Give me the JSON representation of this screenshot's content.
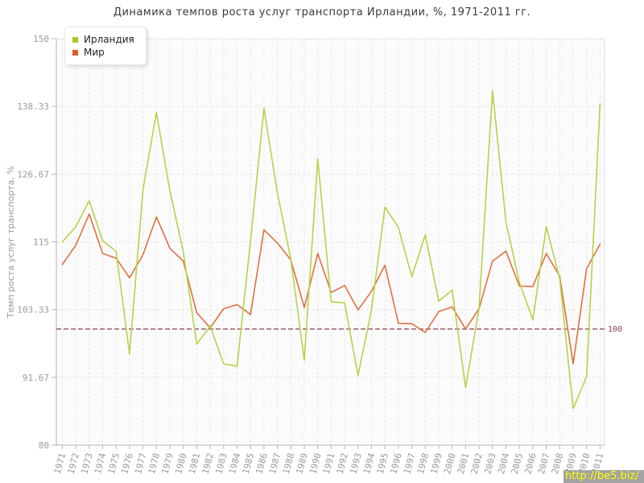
{
  "title": "Динамика темпов роста услуг транспорта Ирландии, %, 1971-2011 гг.",
  "legend": {
    "items": [
      {
        "label": "Ирландия",
        "color": "#a9c82c"
      },
      {
        "label": "Мир",
        "color": "#dd5f24"
      }
    ]
  },
  "watermark": {
    "text": "http://be5.biz/",
    "bg": "#a3a3a3",
    "fg": "#ffff00"
  },
  "axis": {
    "ylabel": "Темп роста услуг транспорта, %",
    "threshold_label": "100"
  },
  "chart_data": {
    "type": "line",
    "title": "Динамика темпов роста услуг транспорта Ирландии, %, 1971-2011 гг.",
    "xlabel": "",
    "ylabel": "Темп роста услуг транспорта, %",
    "ylim": [
      80,
      150
    ],
    "yticks": [
      {
        "value": 150,
        "label": "150"
      },
      {
        "value": 138.33,
        "label": "138.33"
      },
      {
        "value": 126.67,
        "label": "126.67"
      },
      {
        "value": 115,
        "label": "115"
      },
      {
        "value": 103.33,
        "label": "103.33"
      },
      {
        "value": 91.67,
        "label": "91.67"
      },
      {
        "value": 80,
        "label": "80"
      }
    ],
    "x": [
      1971,
      1972,
      1973,
      1974,
      1975,
      1976,
      1977,
      1978,
      1979,
      1980,
      1981,
      1982,
      1983,
      1984,
      1985,
      1986,
      1987,
      1988,
      1989,
      1990,
      1991,
      1992,
      1993,
      1994,
      1995,
      1996,
      1997,
      1998,
      1999,
      2000,
      2001,
      2002,
      2003,
      2004,
      2005,
      2006,
      2007,
      2008,
      2009,
      2010,
      2011
    ],
    "series": [
      {
        "name": "Ирландия",
        "color": "#b6d24b",
        "values": [
          115.0,
          117.6,
          122.1,
          115.2,
          113.4,
          95.7,
          124.0,
          137.3,
          123.8,
          113.3,
          97.4,
          100.5,
          94.0,
          93.6,
          115.2,
          138.0,
          123.4,
          112.0,
          94.6,
          129.3,
          104.7,
          104.5,
          92.0,
          103.3,
          121.0,
          117.5,
          109.0,
          116.2,
          104.8,
          106.7,
          89.9,
          103.6,
          141.1,
          118.4,
          108.0,
          101.6,
          117.6,
          108.7,
          86.3,
          91.8,
          138.8
        ]
      },
      {
        "name": "Мир",
        "color": "#e0713f",
        "values": [
          111.1,
          114.4,
          119.8,
          113.0,
          112.2,
          108.8,
          112.8,
          119.3,
          113.9,
          111.7,
          102.8,
          100.2,
          103.5,
          104.2,
          102.5,
          117.1,
          114.8,
          111.9,
          103.7,
          113.0,
          106.3,
          107.5,
          103.3,
          106.5,
          111.0,
          101.0,
          100.9,
          99.4,
          103.0,
          103.8,
          100.0,
          103.5,
          111.7,
          113.4,
          107.4,
          107.3,
          113.0,
          109.1,
          94.0,
          110.4,
          114.6
        ]
      }
    ],
    "threshold": {
      "value": 100,
      "label": "100",
      "color": "#8e3a52",
      "style": "dashed"
    },
    "grid": "dashed",
    "legend_position": "top-left"
  }
}
